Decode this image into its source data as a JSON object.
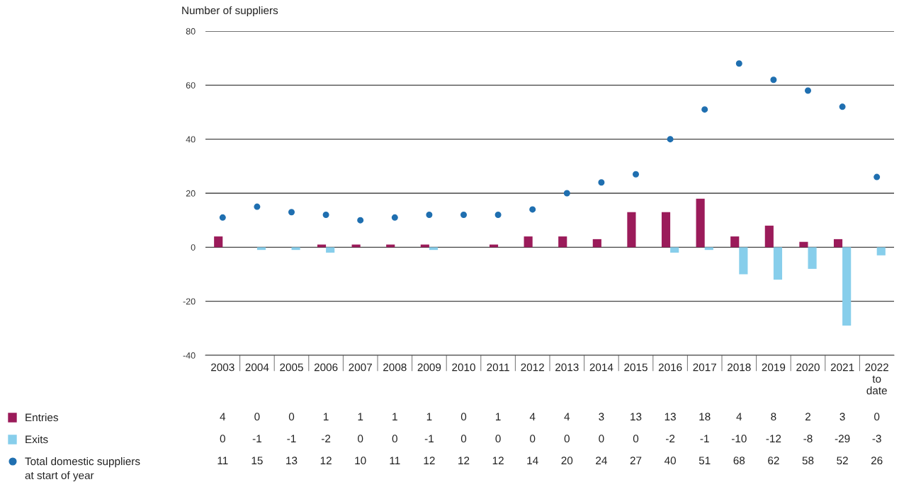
{
  "chart_data": {
    "type": "bar",
    "ylabel": "Number of suppliers",
    "categories": [
      "2003",
      "2004",
      "2005",
      "2006",
      "2007",
      "2008",
      "2009",
      "2010",
      "2011",
      "2012",
      "2013",
      "2014",
      "2015",
      "2016",
      "2017",
      "2018",
      "2019",
      "2020",
      "2021",
      "2022\nto\ndate"
    ],
    "series": [
      {
        "name": "Entries",
        "color": "#9b1b5a",
        "values": [
          4,
          0,
          0,
          1,
          1,
          1,
          1,
          0,
          1,
          4,
          4,
          3,
          13,
          13,
          18,
          4,
          8,
          2,
          3,
          0
        ]
      },
      {
        "name": "Exits",
        "color": "#87ceeb",
        "values": [
          0,
          -1,
          -1,
          -2,
          0,
          0,
          -1,
          0,
          0,
          0,
          0,
          0,
          0,
          -2,
          -1,
          -10,
          -12,
          -8,
          -29,
          -3
        ]
      },
      {
        "name": "Total domestic suppliers\nat start of year",
        "type": "scatter",
        "color": "#1f6fb0",
        "values": [
          11,
          15,
          13,
          12,
          10,
          11,
          12,
          12,
          12,
          14,
          20,
          24,
          27,
          40,
          51,
          68,
          62,
          58,
          52,
          26
        ]
      }
    ],
    "ylim": [
      -40,
      80
    ],
    "yticks": [
      -40,
      -20,
      0,
      20,
      40,
      60,
      80
    ],
    "grid": "y",
    "legend": "bottom left",
    "marker": "circle",
    "data_labels": true
  }
}
